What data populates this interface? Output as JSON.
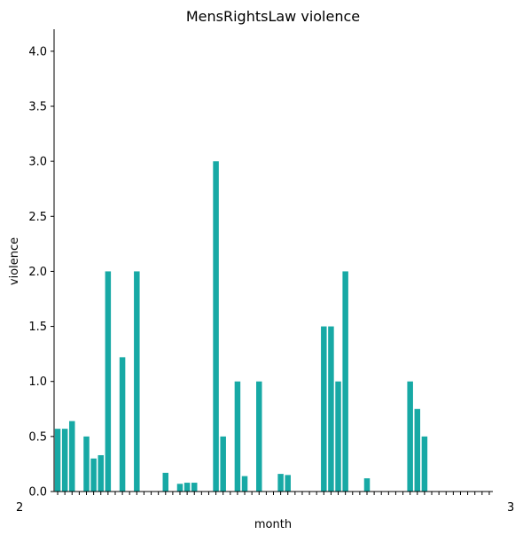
{
  "chart_data": {
    "type": "bar",
    "title": "MensRightsLaw violence",
    "xlabel": "month",
    "ylabel": "violence",
    "ylim": [
      0,
      4.2
    ],
    "yticks": [
      "0.0",
      "0.5",
      "1.0",
      "1.5",
      "2.0",
      "2.5",
      "3.0",
      "3.5",
      "4.0"
    ],
    "ytick_values": [
      0,
      0.5,
      1.0,
      1.5,
      2.0,
      2.5,
      3.0,
      3.5,
      4.0
    ],
    "xtick_label_fragments": {
      "first": "2",
      "last": "3"
    },
    "grid": false,
    "legend": "none",
    "bar_color": "#17a9a5",
    "n_categories": 61,
    "values": [
      0.57,
      0.57,
      0.64,
      0,
      0.5,
      0.3,
      0.33,
      2.0,
      0,
      1.22,
      0,
      2.0,
      0,
      0,
      0,
      0.17,
      0,
      0.07,
      0.08,
      0.08,
      0,
      0,
      3.0,
      0.5,
      0,
      1.0,
      0.14,
      0,
      1.0,
      0,
      0,
      0.16,
      0.15,
      0,
      0,
      0,
      0,
      1.5,
      1.5,
      1.0,
      2.0,
      0,
      0,
      0.12,
      0,
      0,
      0,
      0,
      0,
      1.0,
      0.75,
      0.5,
      0,
      0,
      0,
      0,
      0,
      0,
      0,
      0,
      0
    ]
  }
}
